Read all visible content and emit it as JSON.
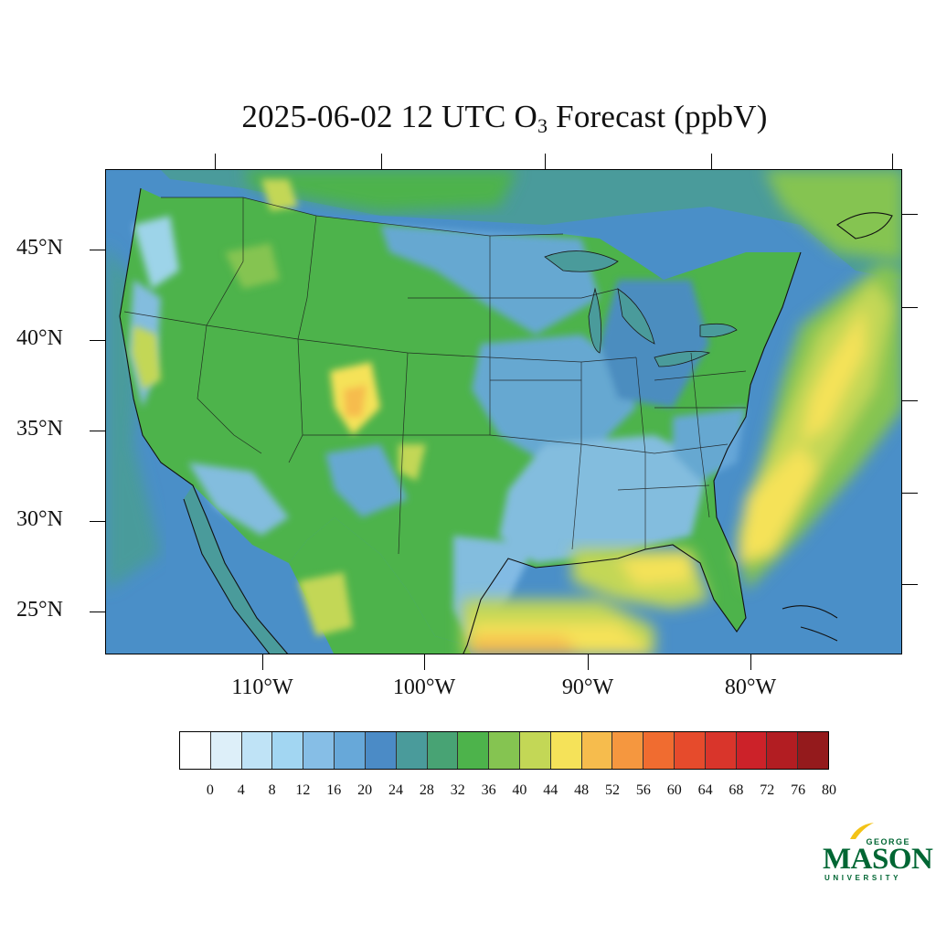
{
  "title": {
    "prefix": "2025-06-02 12 UTC O",
    "subscript": "3",
    "suffix": " Forecast (ppbV)"
  },
  "axes": {
    "lat_labels": [
      "45°N",
      "40°N",
      "35°N",
      "30°N",
      "25°N"
    ],
    "lon_labels": [
      "110°W",
      "100°W",
      "90°W",
      "80°W"
    ]
  },
  "colorbar": {
    "tick_labels": [
      "0",
      "4",
      "8",
      "12",
      "16",
      "20",
      "24",
      "28",
      "32",
      "36",
      "40",
      "44",
      "48",
      "52",
      "56",
      "60",
      "64",
      "68",
      "72",
      "76",
      "80"
    ],
    "colors": [
      "#ffffff",
      "#ddeff9",
      "#bfe3f6",
      "#a2d6f2",
      "#86bee6",
      "#67a8d9",
      "#4b8bc6",
      "#4a9b9b",
      "#48a374",
      "#4db34b",
      "#85c451",
      "#c3d756",
      "#f5e259",
      "#f6bc4d",
      "#f5973f",
      "#f06c30",
      "#e64b2c",
      "#d9352b",
      "#cc2229",
      "#b21d22",
      "#941a1c"
    ]
  },
  "map": {
    "ocean_color": "#4a8fc8",
    "land_color": "#4db34b",
    "line_color": "#1a1a1a"
  },
  "logo": {
    "george": "GEORGE",
    "mason": "MASON",
    "university": "UNIVERSITY",
    "brand_color": "#006633",
    "accent_color": "#f3c317"
  }
}
